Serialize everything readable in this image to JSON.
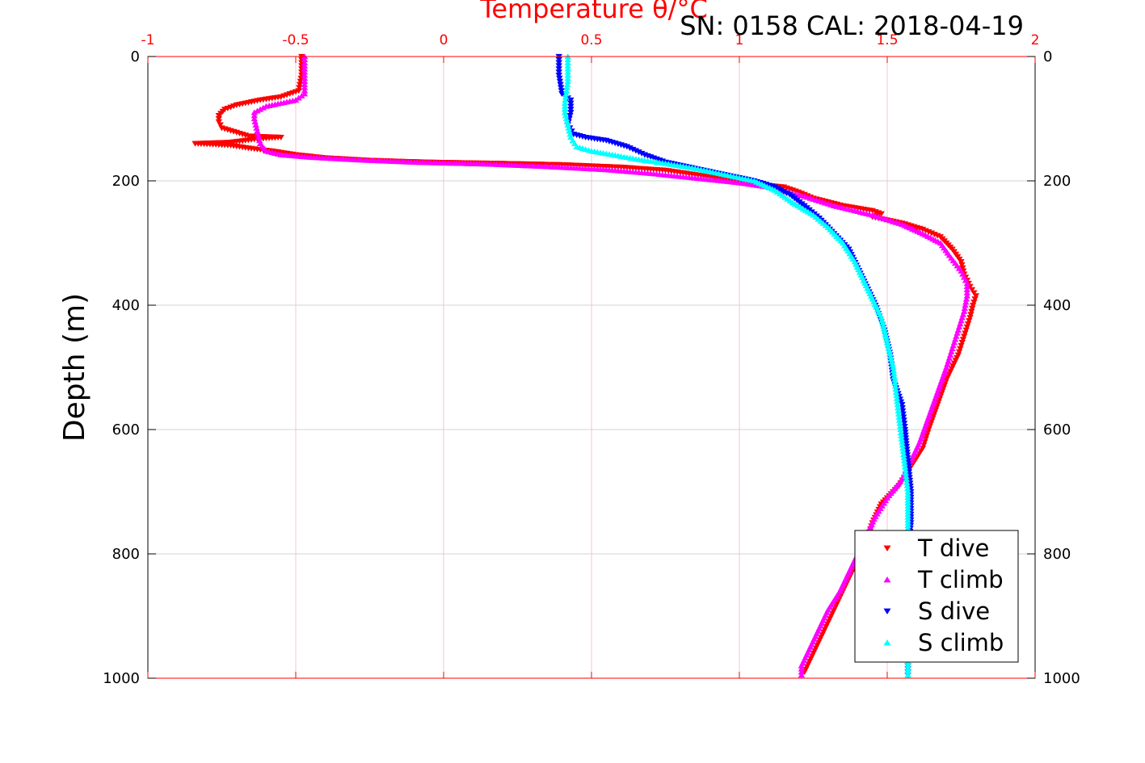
{
  "chart_data": {
    "type": "scatter",
    "title": "Temperature θ/°C",
    "annotation": "SN: 0158  CAL: 2018-04-19",
    "xlabel": "Temperature θ/°C",
    "ylabel": "Depth (m)",
    "xlim": [
      -1,
      2
    ],
    "ylim": [
      1000,
      0
    ],
    "x_ticks": [
      "-1",
      "-0.5",
      "0",
      "0.5",
      "1",
      "1.5",
      "2"
    ],
    "y_ticks": [
      "0",
      "200",
      "400",
      "600",
      "800",
      "1000"
    ],
    "x_axis_location": "top",
    "y_axis_reversed": true,
    "grid": true,
    "legend_location": "bottom-right",
    "colors": {
      "axis_top": "#ff0000",
      "grid_vertical": "#ffc0cb",
      "grid_horizontal": "#d3d3d3",
      "T dive": "#ff0000",
      "T climb": "#ff00ff",
      "S dive": "#0000ff",
      "S climb": "#00ffff"
    },
    "series": [
      {
        "name": "T dive",
        "marker": "triangle-down",
        "color": "#ff0000",
        "points": [
          [
            -0.48,
            0
          ],
          [
            -0.48,
            30
          ],
          [
            -0.49,
            55
          ],
          [
            -0.55,
            65
          ],
          [
            -0.62,
            70
          ],
          [
            -0.7,
            78
          ],
          [
            -0.74,
            85
          ],
          [
            -0.76,
            95
          ],
          [
            -0.76,
            105
          ],
          [
            -0.75,
            115
          ],
          [
            -0.7,
            122
          ],
          [
            -0.66,
            128
          ],
          [
            -0.55,
            130
          ],
          [
            -0.62,
            132
          ],
          [
            -0.72,
            138
          ],
          [
            -0.84,
            140
          ],
          [
            -0.72,
            143
          ],
          [
            -0.65,
            148
          ],
          [
            -0.58,
            152
          ],
          [
            -0.5,
            158
          ],
          [
            -0.4,
            163
          ],
          [
            -0.25,
            167
          ],
          [
            -0.05,
            170
          ],
          [
            0.2,
            172
          ],
          [
            0.4,
            174
          ],
          [
            0.6,
            178
          ],
          [
            0.75,
            183
          ],
          [
            0.85,
            190
          ],
          [
            0.95,
            198
          ],
          [
            1.05,
            205
          ],
          [
            1.15,
            210
          ],
          [
            1.2,
            218
          ],
          [
            1.25,
            228
          ],
          [
            1.35,
            240
          ],
          [
            1.45,
            248
          ],
          [
            1.48,
            253
          ],
          [
            1.45,
            258
          ],
          [
            1.55,
            268
          ],
          [
            1.62,
            278
          ],
          [
            1.68,
            290
          ],
          [
            1.72,
            310
          ],
          [
            1.75,
            330
          ],
          [
            1.76,
            350
          ],
          [
            1.78,
            370
          ],
          [
            1.8,
            385
          ],
          [
            1.79,
            400
          ],
          [
            1.78,
            420
          ],
          [
            1.76,
            450
          ],
          [
            1.74,
            480
          ],
          [
            1.7,
            520
          ],
          [
            1.67,
            560
          ],
          [
            1.64,
            600
          ],
          [
            1.62,
            630
          ],
          [
            1.58,
            660
          ],
          [
            1.54,
            690
          ],
          [
            1.48,
            720
          ],
          [
            1.45,
            750
          ],
          [
            1.43,
            780
          ],
          [
            1.4,
            810
          ],
          [
            1.37,
            840
          ],
          [
            1.34,
            870
          ],
          [
            1.31,
            900
          ],
          [
            1.28,
            930
          ],
          [
            1.25,
            960
          ],
          [
            1.22,
            990
          ]
        ]
      },
      {
        "name": "T climb",
        "marker": "triangle-up",
        "color": "#ff00ff",
        "points": [
          [
            -0.47,
            0
          ],
          [
            -0.47,
            30
          ],
          [
            -0.47,
            60
          ],
          [
            -0.5,
            70
          ],
          [
            -0.6,
            80
          ],
          [
            -0.64,
            90
          ],
          [
            -0.64,
            100
          ],
          [
            -0.63,
            120
          ],
          [
            -0.62,
            140
          ],
          [
            -0.6,
            152
          ],
          [
            -0.55,
            158
          ],
          [
            -0.45,
            162
          ],
          [
            -0.3,
            166
          ],
          [
            -0.1,
            170
          ],
          [
            0.15,
            173
          ],
          [
            0.35,
            177
          ],
          [
            0.55,
            182
          ],
          [
            0.7,
            188
          ],
          [
            0.8,
            193
          ],
          [
            0.9,
            198
          ],
          [
            1.0,
            203
          ],
          [
            1.1,
            210
          ],
          [
            1.22,
            225
          ],
          [
            1.32,
            240
          ],
          [
            1.45,
            255
          ],
          [
            1.55,
            270
          ],
          [
            1.62,
            285
          ],
          [
            1.68,
            300
          ],
          [
            1.71,
            320
          ],
          [
            1.75,
            345
          ],
          [
            1.77,
            365
          ],
          [
            1.77,
            385
          ],
          [
            1.76,
            410
          ],
          [
            1.74,
            440
          ],
          [
            1.72,
            470
          ],
          [
            1.7,
            500
          ],
          [
            1.67,
            540
          ],
          [
            1.64,
            580
          ],
          [
            1.61,
            620
          ],
          [
            1.58,
            650
          ],
          [
            1.55,
            680
          ],
          [
            1.5,
            710
          ],
          [
            1.46,
            740
          ],
          [
            1.43,
            770
          ],
          [
            1.4,
            800
          ],
          [
            1.37,
            830
          ],
          [
            1.34,
            860
          ],
          [
            1.3,
            890
          ],
          [
            1.27,
            920
          ],
          [
            1.24,
            950
          ],
          [
            1.21,
            980
          ],
          [
            1.21,
            995
          ]
        ]
      },
      {
        "name": "S dive",
        "marker": "triangle-down",
        "color": "#0000ff",
        "points": [
          [
            0.39,
            0
          ],
          [
            0.39,
            30
          ],
          [
            0.4,
            60
          ],
          [
            0.43,
            70
          ],
          [
            0.43,
            90
          ],
          [
            0.42,
            110
          ],
          [
            0.44,
            125
          ],
          [
            0.48,
            130
          ],
          [
            0.55,
            135
          ],
          [
            0.62,
            145
          ],
          [
            0.68,
            158
          ],
          [
            0.75,
            170
          ],
          [
            0.85,
            180
          ],
          [
            0.95,
            190
          ],
          [
            1.05,
            200
          ],
          [
            1.12,
            210
          ],
          [
            1.17,
            222
          ],
          [
            1.22,
            240
          ],
          [
            1.27,
            260
          ],
          [
            1.32,
            285
          ],
          [
            1.37,
            310
          ],
          [
            1.4,
            340
          ],
          [
            1.43,
            370
          ],
          [
            1.46,
            400
          ],
          [
            1.49,
            440
          ],
          [
            1.51,
            480
          ],
          [
            1.52,
            520
          ],
          [
            1.55,
            560
          ],
          [
            1.56,
            600
          ],
          [
            1.57,
            650
          ],
          [
            1.58,
            700
          ],
          [
            1.58,
            750
          ],
          [
            1.57,
            800
          ],
          [
            1.57,
            850
          ],
          [
            1.57,
            900
          ],
          [
            1.57,
            950
          ],
          [
            1.57,
            995
          ]
        ]
      },
      {
        "name": "S climb",
        "marker": "triangle-up",
        "color": "#00ffff",
        "points": [
          [
            0.42,
            0
          ],
          [
            0.42,
            40
          ],
          [
            0.41,
            75
          ],
          [
            0.41,
            90
          ],
          [
            0.42,
            110
          ],
          [
            0.43,
            130
          ],
          [
            0.45,
            145
          ],
          [
            0.5,
            152
          ],
          [
            0.57,
            158
          ],
          [
            0.65,
            165
          ],
          [
            0.75,
            172
          ],
          [
            0.85,
            180
          ],
          [
            0.95,
            190
          ],
          [
            1.05,
            200
          ],
          [
            1.12,
            215
          ],
          [
            1.18,
            235
          ],
          [
            1.25,
            255
          ],
          [
            1.3,
            275
          ],
          [
            1.35,
            300
          ],
          [
            1.39,
            330
          ],
          [
            1.42,
            360
          ],
          [
            1.45,
            390
          ],
          [
            1.48,
            420
          ],
          [
            1.5,
            460
          ],
          [
            1.52,
            500
          ],
          [
            1.53,
            540
          ],
          [
            1.54,
            580
          ],
          [
            1.55,
            620
          ],
          [
            1.56,
            660
          ],
          [
            1.57,
            700
          ],
          [
            1.57,
            750
          ],
          [
            1.57,
            800
          ],
          [
            1.57,
            850
          ],
          [
            1.57,
            900
          ],
          [
            1.57,
            950
          ],
          [
            1.57,
            995
          ]
        ]
      }
    ]
  }
}
